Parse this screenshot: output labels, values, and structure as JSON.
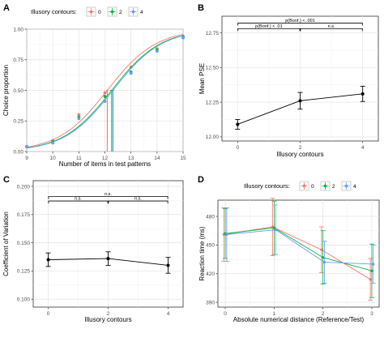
{
  "panels": [
    {
      "letter": "A",
      "chart_data": {
        "type": "line",
        "legend": {
          "title": "Illusory contours:",
          "entries": [
            "0",
            "2",
            "4"
          ],
          "placement": "top"
        },
        "colors": [
          "#f8766d",
          "#00ba38",
          "#619cff"
        ],
        "xlabel": "Number of items in test patterns",
        "ylabel": "Choice proportion",
        "xlim": [
          9,
          15
        ],
        "ylim": [
          0,
          1
        ],
        "xticks": [
          9,
          10,
          11,
          12,
          13,
          14,
          15
        ],
        "yticks": [
          0.0,
          0.25,
          0.5,
          0.75,
          1.0
        ],
        "ytick_labels": [
          "0.00",
          "0.25",
          "0.50",
          "0.75",
          "1.00"
        ],
        "grid": true,
        "series": [
          {
            "name": "0",
            "x": [
              9,
              10,
              11,
              12,
              13,
              14,
              15
            ],
            "y": [
              0.04,
              0.09,
              0.3,
              0.48,
              0.69,
              0.84,
              0.93
            ],
            "pse": 12.09,
            "pse_err": 0.04
          },
          {
            "name": "2",
            "x": [
              9,
              10,
              11,
              12,
              13,
              14,
              15
            ],
            "y": [
              0.04,
              0.08,
              0.28,
              0.45,
              0.65,
              0.83,
              0.94
            ],
            "pse": 12.26,
            "pse_err": 0.06
          },
          {
            "name": "4",
            "x": [
              9,
              10,
              11,
              12,
              13,
              14,
              15
            ],
            "y": [
              0.04,
              0.07,
              0.27,
              0.41,
              0.64,
              0.82,
              0.93
            ],
            "pse": 12.31,
            "pse_err": 0.05
          }
        ]
      }
    },
    {
      "letter": "B",
      "chart_data": {
        "type": "line",
        "xlabel": "Illusory contours",
        "ylabel": "Mean PSE",
        "x": [
          0,
          2,
          4
        ],
        "xticks": [
          0,
          2,
          4
        ],
        "xlim": [
          -0.5,
          4.5
        ],
        "ylim": [
          11.97,
          12.87
        ],
        "yticks": [
          12.0,
          12.25,
          12.5,
          12.75
        ],
        "ytick_labels": [
          "12.00",
          "12.25",
          "12.50",
          "12.75"
        ],
        "grid": true,
        "series": [
          {
            "values": [
              12.09,
              12.26,
              12.31
            ],
            "errors": [
              0.035,
              0.06,
              0.055
            ]
          }
        ],
        "annotations": [
          {
            "label": "p(Bonf.) < .001",
            "from": 0,
            "to": 4,
            "y": 12.82
          },
          {
            "label": "p(Bonf.) < .01",
            "from": 0,
            "to": 2,
            "y": 12.78
          },
          {
            "label": "n.s.",
            "from": 2,
            "to": 4,
            "y": 12.78
          }
        ]
      }
    },
    {
      "letter": "C",
      "chart_data": {
        "type": "line",
        "xlabel": "Illusory contours",
        "ylabel": "Coefficient of Variation",
        "x": [
          0,
          2,
          4
        ],
        "xticks": [
          0,
          2,
          4
        ],
        "xlim": [
          -0.5,
          4.5
        ],
        "ylim": [
          0.093,
          0.205
        ],
        "yticks": [
          0.1,
          0.125,
          0.15,
          0.175,
          0.2
        ],
        "ytick_labels": [
          "0.100",
          "0.125",
          "0.150",
          "0.175",
          "0.200"
        ],
        "grid": true,
        "series": [
          {
            "values": [
              0.135,
              0.136,
              0.13
            ],
            "errors": [
              0.006,
              0.006,
              0.007
            ]
          }
        ],
        "annotations": [
          {
            "label": "n.s.",
            "from": 0,
            "to": 4,
            "y": 0.191
          },
          {
            "label": "n.s.",
            "from": 0,
            "to": 2,
            "y": 0.187
          },
          {
            "label": "n.s.",
            "from": 2,
            "to": 4,
            "y": 0.187
          }
        ]
      }
    },
    {
      "letter": "D",
      "chart_data": {
        "type": "line",
        "legend": {
          "title": "Illusory contours:",
          "entries": [
            "0",
            "2",
            "4"
          ],
          "placement": "top"
        },
        "colors": [
          "#f8766d",
          "#00ba38",
          "#619cff"
        ],
        "xlabel": "Absolute numerical distance (Reference/Test)",
        "ylabel": "Reaction time (ms)",
        "x": [
          0,
          1,
          2,
          3
        ],
        "xticks": [
          0,
          1,
          2,
          3
        ],
        "xlim": [
          -0.15,
          3.15
        ],
        "ylim": [
          385,
          497
        ],
        "yticks": [
          390,
          420,
          450,
          480
        ],
        "ytick_labels": [
          "390",
          "420",
          "450",
          "480"
        ],
        "grid": true,
        "series": [
          {
            "name": "0",
            "values": [
              461,
              469,
              445,
              414
            ],
            "errors": [
              28,
              30,
              24,
              22
            ]
          },
          {
            "name": "2",
            "values": [
              462,
              468,
              437,
              423
            ],
            "errors": [
              26,
              28,
              28,
              28
            ]
          },
          {
            "name": "4",
            "values": [
              461,
              466,
              432,
              430
            ],
            "errors": [
              28,
              26,
              22,
              20
            ]
          }
        ]
      }
    }
  ]
}
